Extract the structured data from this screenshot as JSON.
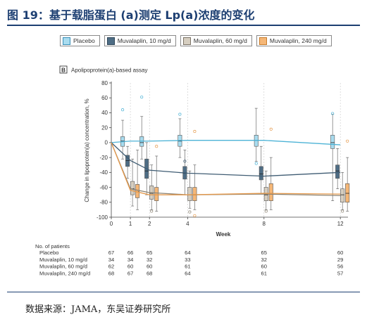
{
  "figure": {
    "title": "图 19：基于载脂蛋白 (a)测定 Lp(a)浓度的变化",
    "source": "数据来源：JAMA，东吴证券研究所"
  },
  "legend": [
    {
      "label": "Placebo",
      "color": "#a9dcef",
      "border": "#3a8fb8"
    },
    {
      "label": "Muvalaplin, 10 mg/d",
      "color": "#4e6d85",
      "border": "#2f4658"
    },
    {
      "label": "Muvalaplin, 60 mg/d",
      "color": "#d6cec0",
      "border": "#7a7266"
    },
    {
      "label": "Muvalaplin, 240 mg/d",
      "color": "#f5b777",
      "border": "#c77b2a"
    }
  ],
  "panel": {
    "badge": "B",
    "title": "Apolipoprotein(a)-based assay"
  },
  "chart_data": {
    "type": "line",
    "title": "Apolipoprotein(a)-based assay",
    "xlabel": "Week",
    "ylabel": "Change in lipoprotein(a) concentration, %",
    "xlim": [
      0,
      12.4
    ],
    "ylim": [
      -100,
      80
    ],
    "xticks": [
      0,
      1,
      2,
      4,
      8,
      12
    ],
    "yticks": [
      -100,
      -80,
      -60,
      -40,
      -20,
      0,
      20,
      40,
      60,
      80
    ],
    "grid": "vertical dashed lines at weeks",
    "series": [
      {
        "name": "Placebo",
        "color": "#4db3d6",
        "fill": "#a9dcef",
        "mean": [
          [
            0,
            0
          ],
          [
            1,
            2
          ],
          [
            2,
            2
          ],
          [
            4,
            3
          ],
          [
            8,
            3
          ],
          [
            12,
            -3
          ]
        ],
        "boxes": [
          {
            "week": 1,
            "q1": -5,
            "median": 2,
            "q3": 8,
            "whisker_low": -22,
            "whisker_high": 30,
            "outliers": [
              44
            ]
          },
          {
            "week": 2,
            "q1": -5,
            "median": 0,
            "q3": 8,
            "whisker_low": -22,
            "whisker_high": 35,
            "outliers": [
              61
            ]
          },
          {
            "week": 4,
            "q1": -5,
            "median": 2,
            "q3": 10,
            "whisker_low": -20,
            "whisker_high": 32,
            "outliers": [
              38
            ]
          },
          {
            "week": 8,
            "q1": -5,
            "median": 3,
            "q3": 10,
            "whisker_low": -25,
            "whisker_high": 46,
            "outliers": [
              -28
            ]
          },
          {
            "week": 12,
            "q1": -8,
            "median": 0,
            "q3": 10,
            "whisker_low": -78,
            "whisker_high": 38,
            "outliers": [
              39
            ]
          }
        ]
      },
      {
        "name": "Muvalaplin, 10 mg/d",
        "color": "#3f5c73",
        "fill": "#4e6d85",
        "mean": [
          [
            0,
            0
          ],
          [
            1,
            -24
          ],
          [
            2,
            -37
          ],
          [
            4,
            -41
          ],
          [
            8,
            -45
          ],
          [
            12,
            -40
          ]
        ],
        "boxes": [
          {
            "week": 1,
            "q1": -32,
            "median": -24,
            "q3": -17,
            "whisker_low": -48,
            "whisker_high": -5,
            "outliers": []
          },
          {
            "week": 2,
            "q1": -48,
            "median": -38,
            "q3": -22,
            "whisker_low": -70,
            "whisker_high": 0,
            "outliers": []
          },
          {
            "week": 4,
            "q1": -49,
            "median": -41,
            "q3": -32,
            "whisker_low": -70,
            "whisker_high": -10,
            "outliers": [
              -25
            ]
          },
          {
            "week": 8,
            "q1": -50,
            "median": -42,
            "q3": -32,
            "whisker_low": -68,
            "whisker_high": -5,
            "outliers": []
          },
          {
            "week": 12,
            "q1": -48,
            "median": -38,
            "q3": -30,
            "whisker_low": -62,
            "whisker_high": -8,
            "outliers": []
          }
        ]
      },
      {
        "name": "Muvalaplin, 60 mg/d",
        "color": "#8c8373",
        "fill": "#d6cec0",
        "mean": [
          [
            0,
            0
          ],
          [
            1,
            -62
          ],
          [
            2,
            -67
          ],
          [
            4,
            -70
          ],
          [
            8,
            -69
          ],
          [
            12,
            -71
          ]
        ],
        "boxes": [
          {
            "week": 1,
            "q1": -70,
            "median": -62,
            "q3": -52,
            "whisker_low": -85,
            "whisker_high": -22,
            "outliers": []
          },
          {
            "week": 2,
            "q1": -76,
            "median": -68,
            "q3": -58,
            "whisker_low": -90,
            "whisker_high": -30,
            "outliers": [
              -92
            ]
          },
          {
            "week": 4,
            "q1": -78,
            "median": -70,
            "q3": -60,
            "whisker_low": -88,
            "whisker_high": -38,
            "outliers": [
              -93
            ]
          },
          {
            "week": 8,
            "q1": -78,
            "median": -70,
            "q3": -60,
            "whisker_low": -90,
            "whisker_high": -38,
            "outliers": [
              -92
            ]
          },
          {
            "week": 12,
            "q1": -80,
            "median": -70,
            "q3": -62,
            "whisker_low": -90,
            "whisker_high": -40,
            "outliers": [
              -92
            ]
          }
        ]
      },
      {
        "name": "Muvalaplin, 240 mg/d",
        "color": "#e59a4d",
        "fill": "#f5b777",
        "mean": [
          [
            0,
            0
          ],
          [
            1,
            -64
          ],
          [
            2,
            -70
          ],
          [
            4,
            -70
          ],
          [
            8,
            -68
          ],
          [
            12,
            -69
          ]
        ],
        "boxes": [
          {
            "week": 1,
            "q1": -74,
            "median": -66,
            "q3": -56,
            "whisker_low": -90,
            "whisker_high": -10,
            "outliers": []
          },
          {
            "week": 2,
            "q1": -78,
            "median": -70,
            "q3": -60,
            "whisker_low": -92,
            "whisker_high": -18,
            "outliers": [
              -5
            ]
          },
          {
            "week": 4,
            "q1": -78,
            "median": -70,
            "q3": -60,
            "whisker_low": -90,
            "whisker_high": -30,
            "outliers": [
              15,
              -98
            ]
          },
          {
            "week": 8,
            "q1": -78,
            "median": -68,
            "q3": -55,
            "whisker_low": -90,
            "whisker_high": -20,
            "outliers": [
              18
            ]
          },
          {
            "week": 12,
            "q1": -80,
            "median": -68,
            "q3": -55,
            "whisker_low": -92,
            "whisker_high": -20,
            "outliers": [
              2
            ]
          }
        ]
      }
    ]
  },
  "patients_table": {
    "heading": "No. of patients",
    "weeks": [
      0,
      1,
      2,
      4,
      8,
      12
    ],
    "rows": [
      {
        "label": "Placebo",
        "counts": [
          "67",
          "66",
          "65",
          "64",
          "65",
          "60"
        ]
      },
      {
        "label": "Muvalaplin, 10 mg/d",
        "counts": [
          "34",
          "34",
          "32",
          "33",
          "32",
          "29"
        ]
      },
      {
        "label": "Muvalaplin, 60 mg/d",
        "counts": [
          "62",
          "60",
          "60",
          "61",
          "60",
          "56"
        ]
      },
      {
        "label": "Muvalaplin, 240 mg/d",
        "counts": [
          "68",
          "67",
          "68",
          "64",
          "61",
          "57"
        ]
      }
    ]
  }
}
